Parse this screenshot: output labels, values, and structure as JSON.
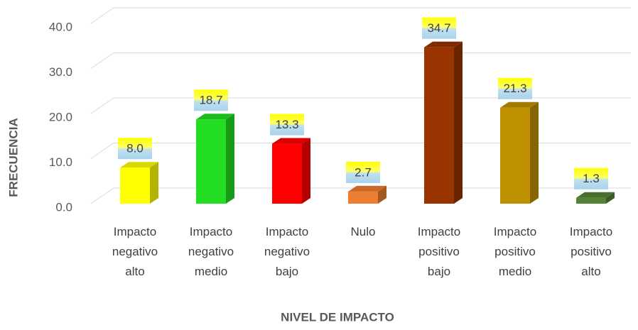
{
  "chart_data": {
    "type": "bar3d",
    "x_label": "NIVEL DE IMPACTO",
    "y_label": "FRECUENCIA",
    "categories": [
      "Impacto negativo alto",
      "Impacto negativo medio",
      "Impacto negativo bajo",
      "Nulo",
      "Impacto positivo bajo",
      "Impacto positivo medio",
      "Impacto positivo alto"
    ],
    "values": [
      8,
      18.7,
      13.3,
      2.7,
      34.7,
      21.3,
      1.3
    ],
    "value_labels": [
      "8.0",
      "18.7",
      "13.3",
      "2.7",
      "34.7",
      "21.3",
      "1.3"
    ],
    "colors": [
      "#ffff00",
      "#22dd22",
      "#ff0000",
      "#ed7d31",
      "#993300",
      "#bf9000",
      "#548235"
    ],
    "ylim": [
      0,
      40
    ],
    "yticks": [
      {
        "value": 0,
        "label": "0.0"
      },
      {
        "value": 10,
        "label": "10.0"
      },
      {
        "value": 20,
        "label": "20.0"
      },
      {
        "value": 30,
        "label": "30.0"
      },
      {
        "value": 40,
        "label": "40.0"
      }
    ],
    "grid": true
  }
}
